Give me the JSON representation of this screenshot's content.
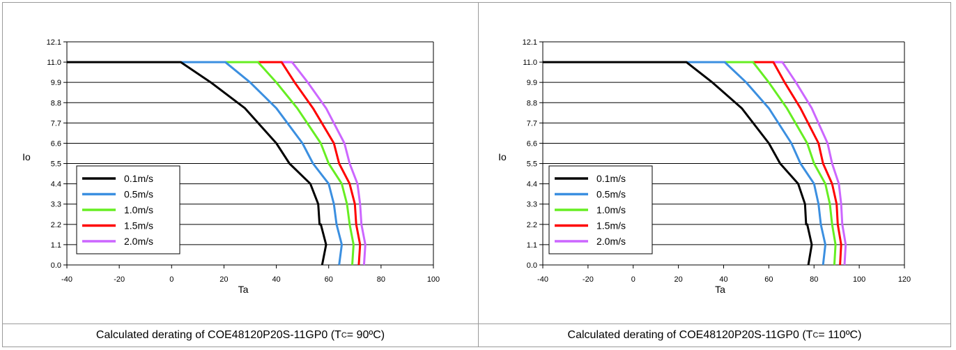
{
  "charts": [
    {
      "caption": {
        "prefix": "Calculated derating of COE48120P20S-11GP0 (T",
        "sub": "C",
        "suffix": "= 90ºC)"
      },
      "chart_data": {
        "type": "line",
        "xlabel": "Ta",
        "ylabel": "Io",
        "xlim": [
          -40,
          100
        ],
        "ylim": [
          0,
          12.1
        ],
        "xticks": [
          "-40",
          "-20",
          "0",
          "20",
          "40",
          "60",
          "80",
          "100"
        ],
        "yticks": [
          "0.0",
          "1.1",
          "2.2",
          "3.3",
          "4.4",
          "5.5",
          "6.6",
          "7.7",
          "8.8",
          "9.9",
          "11.0",
          "12.1"
        ],
        "grid": "horizontal",
        "legend_position": "bottom-left",
        "series": [
          {
            "name": "0.1m/s",
            "color": "#000000",
            "points": [
              [
                -40,
                11
              ],
              [
                3.5,
                11
              ],
              [
                15,
                9.9
              ],
              [
                28,
                8.5
              ],
              [
                40,
                6.6
              ],
              [
                45,
                5.5
              ],
              [
                53,
                4.4
              ],
              [
                56,
                3.3
              ],
              [
                56.5,
                2.2
              ],
              [
                57,
                2.2
              ],
              [
                59,
                1.1
              ],
              [
                57.5,
                0
              ]
            ]
          },
          {
            "name": "0.5m/s",
            "color": "#3b8fe0",
            "points": [
              [
                3.5,
                11
              ],
              [
                20.5,
                11
              ],
              [
                30,
                9.9
              ],
              [
                40,
                8.5
              ],
              [
                50,
                6.6
              ],
              [
                54,
                5.5
              ],
              [
                60,
                4.4
              ],
              [
                62,
                3.3
              ],
              [
                63,
                2.2
              ],
              [
                65,
                1.1
              ],
              [
                64,
                0
              ]
            ]
          },
          {
            "name": "1.0m/s",
            "color": "#66ee22",
            "points": [
              [
                20.5,
                11
              ],
              [
                33,
                11
              ],
              [
                40,
                9.9
              ],
              [
                48,
                8.5
              ],
              [
                57,
                6.6
              ],
              [
                60,
                5.5
              ],
              [
                65,
                4.4
              ],
              [
                67,
                3.3
              ],
              [
                68,
                2.2
              ],
              [
                69.5,
                1.1
              ],
              [
                69,
                0
              ]
            ]
          },
          {
            "name": "1.5m/s",
            "color": "#ff0000",
            "points": [
              [
                33,
                11
              ],
              [
                42,
                11
              ],
              [
                47,
                9.9
              ],
              [
                54,
                8.5
              ],
              [
                62,
                6.6
              ],
              [
                64,
                5.5
              ],
              [
                68,
                4.4
              ],
              [
                70,
                3.3
              ],
              [
                70.5,
                2.2
              ],
              [
                72,
                1.1
              ],
              [
                71.5,
                0
              ]
            ]
          },
          {
            "name": "2.0m/s",
            "color": "#cc66ff",
            "points": [
              [
                42,
                11
              ],
              [
                46,
                11
              ],
              [
                52,
                9.9
              ],
              [
                59,
                8.5
              ],
              [
                66,
                6.6
              ],
              [
                68,
                5.5
              ],
              [
                71,
                4.4
              ],
              [
                72,
                3.3
              ],
              [
                72.5,
                2.2
              ],
              [
                74,
                1.1
              ],
              [
                73.5,
                0
              ]
            ]
          }
        ]
      }
    },
    {
      "caption": {
        "prefix": "Calculated derating of COE48120P20S-11GP0 (T",
        "sub": "C",
        "suffix": "= 110ºC)"
      },
      "chart_data": {
        "type": "line",
        "xlabel": "Ta",
        "ylabel": "Io",
        "xlim": [
          -40,
          120
        ],
        "ylim": [
          0,
          12.1
        ],
        "xticks": [
          "-40",
          "-20",
          "0",
          "20",
          "40",
          "60",
          "80",
          "100",
          "120"
        ],
        "yticks": [
          "0.0",
          "1.1",
          "2.2",
          "3.3",
          "4.4",
          "5.5",
          "6.6",
          "7.7",
          "8.8",
          "9.9",
          "11.0",
          "12.1"
        ],
        "grid": "horizontal",
        "legend_position": "bottom-left",
        "series": [
          {
            "name": "0.1m/s",
            "color": "#000000",
            "points": [
              [
                -40,
                11
              ],
              [
                23.5,
                11
              ],
              [
                35,
                9.9
              ],
              [
                48,
                8.5
              ],
              [
                60,
                6.6
              ],
              [
                65,
                5.5
              ],
              [
                73,
                4.4
              ],
              [
                76,
                3.3
              ],
              [
                76.5,
                2.2
              ],
              [
                77,
                2.2
              ],
              [
                79,
                1.1
              ],
              [
                77.5,
                0
              ]
            ]
          },
          {
            "name": "0.5m/s",
            "color": "#3b8fe0",
            "points": [
              [
                23.5,
                11
              ],
              [
                40.5,
                11
              ],
              [
                50,
                9.9
              ],
              [
                60,
                8.5
              ],
              [
                70,
                6.6
              ],
              [
                74,
                5.5
              ],
              [
                80,
                4.4
              ],
              [
                82,
                3.3
              ],
              [
                83,
                2.2
              ],
              [
                85,
                1.1
              ],
              [
                84,
                0
              ]
            ]
          },
          {
            "name": "1.0m/s",
            "color": "#66ee22",
            "points": [
              [
                40.5,
                11
              ],
              [
                53,
                11
              ],
              [
                60,
                9.9
              ],
              [
                68,
                8.5
              ],
              [
                77,
                6.6
              ],
              [
                80,
                5.5
              ],
              [
                85,
                4.4
              ],
              [
                87,
                3.3
              ],
              [
                88,
                2.2
              ],
              [
                89.5,
                1.1
              ],
              [
                89,
                0
              ]
            ]
          },
          {
            "name": "1.5m/s",
            "color": "#ff0000",
            "points": [
              [
                53,
                11
              ],
              [
                62,
                11
              ],
              [
                67,
                9.9
              ],
              [
                74,
                8.5
              ],
              [
                82,
                6.6
              ],
              [
                84,
                5.5
              ],
              [
                88,
                4.4
              ],
              [
                90,
                3.3
              ],
              [
                90.5,
                2.2
              ],
              [
                92,
                1.1
              ],
              [
                91.5,
                0
              ]
            ]
          },
          {
            "name": "2.0m/s",
            "color": "#cc66ff",
            "points": [
              [
                62,
                11
              ],
              [
                66,
                11
              ],
              [
                72,
                9.9
              ],
              [
                79,
                8.5
              ],
              [
                86,
                6.6
              ],
              [
                88,
                5.5
              ],
              [
                91,
                4.4
              ],
              [
                92,
                3.3
              ],
              [
                92.5,
                2.2
              ],
              [
                94,
                1.1
              ],
              [
                93.5,
                0
              ]
            ]
          }
        ]
      }
    }
  ]
}
